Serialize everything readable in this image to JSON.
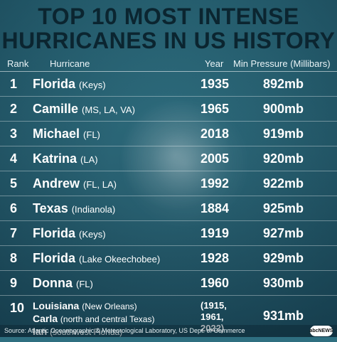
{
  "title": {
    "line1": "TOP 10 MOST INTENSE",
    "line2": "HURRICANES IN US HISTORY"
  },
  "columns": {
    "rank": "Rank",
    "hurricane": "Hurricane",
    "year": "Year",
    "pressure": "Min Pressure (Millibars)"
  },
  "rows": [
    {
      "rank": "1",
      "name": "Florida",
      "note": "(Keys)",
      "year": "1935",
      "pressure": "892mb"
    },
    {
      "rank": "2",
      "name": "Camille",
      "note": "(MS, LA, VA)",
      "year": "1965",
      "pressure": "900mb"
    },
    {
      "rank": "3",
      "name": "Michael",
      "note": "(FL)",
      "year": "2018",
      "pressure": "919mb"
    },
    {
      "rank": "4",
      "name": "Katrina",
      "note": "(LA)",
      "year": "2005",
      "pressure": "920mb"
    },
    {
      "rank": "5",
      "name": "Andrew",
      "note": "(FL, LA)",
      "year": "1992",
      "pressure": "922mb"
    },
    {
      "rank": "6",
      "name": "Texas",
      "note": "(Indianola)",
      "year": "1884",
      "pressure": "925mb"
    },
    {
      "rank": "7",
      "name": "Florida",
      "note": "(Keys)",
      "year": "1919",
      "pressure": "927mb"
    },
    {
      "rank": "8",
      "name": "Florida",
      "note": "(Lake Okeechobee)",
      "year": "1928",
      "pressure": "929mb"
    },
    {
      "rank": "9",
      "name": "Donna",
      "note": "(FL)",
      "year": "1960",
      "pressure": "930mb"
    }
  ],
  "row10": {
    "rank": "10",
    "entries": [
      {
        "name": "Louisiana",
        "note": "(New Orleans)"
      },
      {
        "name": "Carla",
        "note": "(north and central Texas)"
      },
      {
        "name": "Ian",
        "note": "(southwest Florida)"
      }
    ],
    "years": [
      "(1915,",
      "1961,",
      "2022)"
    ],
    "pressure": "931mb"
  },
  "footer": {
    "source": "Source: Atlantic Oceanographic & Meteorological Laboratory, US Dept. of Commerce",
    "logo_text": "abcNEWS"
  }
}
